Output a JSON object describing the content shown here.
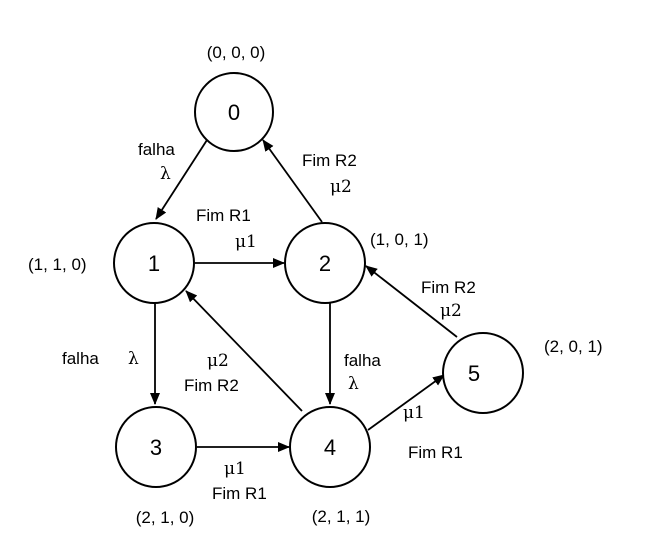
{
  "nodes": [
    {
      "id": "0",
      "state": "(0, 0, 0)"
    },
    {
      "id": "1",
      "state": "(1, 1, 0)"
    },
    {
      "id": "2",
      "state": "(1, 0, 1)"
    },
    {
      "id": "3",
      "state": "(2, 1, 0)"
    },
    {
      "id": "4",
      "state": "(2, 1, 1)"
    },
    {
      "id": "5",
      "state": "(2, 0, 1)"
    }
  ],
  "edges": [
    {
      "from": "0",
      "to": "1",
      "event": "falha",
      "rate": "λ"
    },
    {
      "from": "1",
      "to": "2",
      "event": "Fim R1",
      "rate": "μ1"
    },
    {
      "from": "2",
      "to": "0",
      "event": "Fim R2",
      "rate": "μ2"
    },
    {
      "from": "1",
      "to": "3",
      "event": "falha",
      "rate": "λ"
    },
    {
      "from": "2",
      "to": "4",
      "event": "falha",
      "rate": "λ"
    },
    {
      "from": "4",
      "to": "1",
      "event": "Fim R2",
      "rate": "μ2"
    },
    {
      "from": "3",
      "to": "4",
      "event": "Fim R1",
      "rate": "μ1"
    },
    {
      "from": "4",
      "to": "5",
      "event": "Fim R1",
      "rate": "μ1"
    },
    {
      "from": "5",
      "to": "2",
      "event": "Fim R2",
      "rate": "μ2"
    }
  ]
}
